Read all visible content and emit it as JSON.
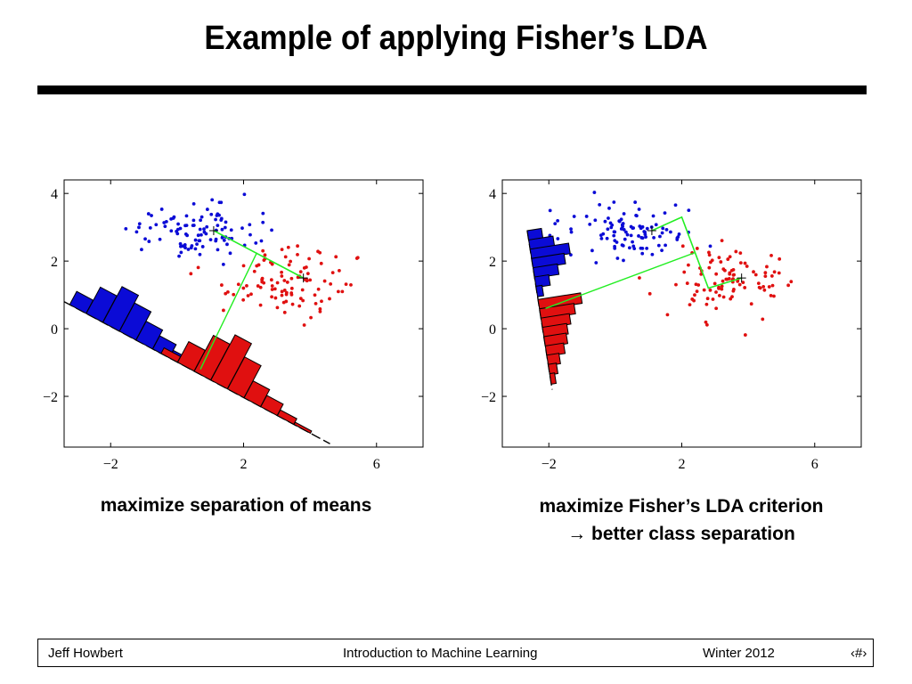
{
  "slide": {
    "title": "Example of applying Fisher’s LDA",
    "captions": {
      "left": "maximize separation of means",
      "right_line1": "maximize Fisher’s LDA criterion",
      "right_line2": "→  better class separation"
    }
  },
  "footer": {
    "author": "Jeff Howbert",
    "course": "Introduction to Machine Learning",
    "term": "Winter 2012",
    "page": "‹#›"
  },
  "colors": {
    "class1": "#0b0bd6",
    "class2": "#e01010",
    "projection": "#22ee22",
    "axis": "#000000"
  },
  "chart_data": [
    {
      "type": "scatter",
      "title": "",
      "xlabel": "",
      "ylabel": "",
      "xlim": [
        -3.4,
        7.4
      ],
      "ylim": [
        -3.5,
        4.4
      ],
      "xticks": [
        -2,
        2,
        6
      ],
      "yticks": [
        -2,
        0,
        2,
        4
      ],
      "xtick_labels": [
        "−2",
        "2",
        "6"
      ],
      "ytick_labels": [
        "−2",
        "0",
        "2",
        "4"
      ],
      "grid": false,
      "series": [
        {
          "color": "blue",
          "center": [
            0.5,
            2.9
          ],
          "spread": [
            0.9,
            0.4
          ],
          "n": 100
        },
        {
          "color": "red",
          "center": [
            3.4,
            1.4
          ],
          "spread": [
            1.0,
            0.55
          ],
          "n": 100
        }
      ],
      "class_means": [
        [
          1.1,
          2.9
        ],
        [
          3.8,
          1.5
        ]
      ],
      "midpoint": [
        2.4,
        2.25
      ],
      "projection_line": [
        [
          -3.4,
          0.8
        ],
        [
          4.6,
          -3.4
        ]
      ],
      "projection_foot": [
        0.7,
        -1.2
      ],
      "histogram_bins": {
        "blue": {
          "t": [
            0.2,
            0.8,
            1.4,
            2.0,
            2.6,
            3.2,
            3.8,
            4.4
          ],
          "h": [
            0.35,
            0.7,
            0.95,
            0.75,
            0.5,
            0.35,
            0.2,
            0.1
          ]
        },
        "red": {
          "t": [
            3.5,
            4.1,
            4.7,
            5.3,
            5.9,
            6.5,
            7.1,
            7.7,
            8.3
          ],
          "h": [
            0.15,
            0.55,
            0.95,
            1.2,
            0.85,
            0.45,
            0.3,
            0.15,
            0.06
          ]
        }
      }
    },
    {
      "type": "scatter",
      "title": "",
      "xlabel": "",
      "ylabel": "",
      "xlim": [
        -3.4,
        7.4
      ],
      "ylim": [
        -3.5,
        4.4
      ],
      "xticks": [
        -2,
        2,
        6
      ],
      "yticks": [
        -2,
        0,
        2,
        4
      ],
      "xtick_labels": [
        "−2",
        "2",
        "6"
      ],
      "ytick_labels": [
        "−2",
        "0",
        "2",
        "4"
      ],
      "grid": false,
      "series": [
        {
          "color": "blue",
          "center": [
            0.5,
            2.9
          ],
          "spread": [
            0.9,
            0.4
          ],
          "n": 100
        },
        {
          "color": "red",
          "center": [
            3.4,
            1.4
          ],
          "spread": [
            1.0,
            0.55
          ],
          "n": 100
        }
      ],
      "class_means": [
        [
          1.1,
          2.9
        ],
        [
          3.8,
          1.5
        ]
      ],
      "mean_path": [
        [
          1.1,
          2.9
        ],
        [
          2.0,
          3.3
        ],
        [
          2.4,
          2.25
        ],
        [
          2.8,
          1.2
        ],
        [
          3.8,
          1.5
        ]
      ],
      "projection_line": [
        [
          -2.65,
          2.9
        ],
        [
          -1.9,
          -1.8
        ]
      ],
      "projection_link": [
        [
          -2.1,
          0.6
        ],
        [
          2.4,
          2.25
        ]
      ],
      "histogram_bins": {
        "blue": {
          "t": [
            0.0,
            0.35,
            0.7,
            1.05,
            1.4,
            1.75,
            2.1
          ],
          "h": [
            0.35,
            0.6,
            0.95,
            0.8,
            0.6,
            0.35,
            0.15
          ]
        },
        "red": {
          "t": [
            2.6,
            2.95,
            3.3,
            3.65,
            4.0,
            4.35,
            4.7,
            5.05,
            5.4
          ],
          "h": [
            1.05,
            0.85,
            0.7,
            0.6,
            0.55,
            0.45,
            0.3,
            0.2,
            0.12
          ]
        }
      }
    }
  ]
}
